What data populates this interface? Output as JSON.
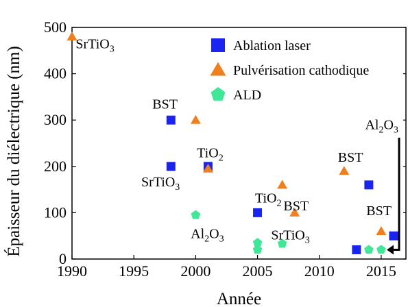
{
  "chart_data": {
    "type": "scatter",
    "title": "",
    "xlabel": "Année",
    "ylabel": "Épaisseur du diélectrique (nm)",
    "xlim": [
      1990,
      2017
    ],
    "ylim": [
      0,
      500
    ],
    "xticks": [
      1990,
      1995,
      2000,
      2005,
      2010,
      2015
    ],
    "yticks": [
      0,
      100,
      200,
      300,
      400,
      500
    ],
    "legend_position": "top-center",
    "grid": false,
    "series": [
      {
        "name": "Ablation laser",
        "marker": "square",
        "color": "#1a24f0",
        "points": [
          [
            1998,
            300
          ],
          [
            1998,
            200
          ],
          [
            2001,
            200
          ],
          [
            2005,
            100
          ],
          [
            2013,
            20
          ],
          [
            2014,
            160
          ],
          [
            2016,
            50
          ]
        ]
      },
      {
        "name": "Pulvérisation cathodique",
        "marker": "triangle",
        "color": "#f0801e",
        "points": [
          [
            1990,
            480
          ],
          [
            2000,
            300
          ],
          [
            2001,
            195
          ],
          [
            2007,
            160
          ],
          [
            2008,
            100
          ],
          [
            2012,
            190
          ],
          [
            2015,
            60
          ]
        ]
      },
      {
        "name": "ALD",
        "marker": "pentagon",
        "color": "#3ee896",
        "points": [
          [
            2000,
            95
          ],
          [
            2005,
            35
          ],
          [
            2005,
            20
          ],
          [
            2007,
            33
          ],
          [
            2014,
            20
          ],
          [
            2015,
            20
          ]
        ]
      }
    ],
    "annotations": [
      {
        "main": "SrTiO",
        "sub": "3",
        "x": 1990.3,
        "y": 455
      },
      {
        "main": "BST",
        "sub": "",
        "x": 1996.5,
        "y": 325
      },
      {
        "main": "SrTiO",
        "sub": "3",
        "x": 1995.6,
        "y": 157
      },
      {
        "main": "TiO",
        "sub": "2",
        "x": 2000.1,
        "y": 220
      },
      {
        "main": "Al",
        "sub": "2",
        "main2": "O",
        "sub2": "3",
        "x": 1999.6,
        "y": 45
      },
      {
        "main": "TiO",
        "sub": "2",
        "x": 2004.8,
        "y": 122
      },
      {
        "main": "BST",
        "sub": "",
        "x": 2007.1,
        "y": 105
      },
      {
        "main": "SrTiO",
        "sub": "3",
        "x": 2006.1,
        "y": 42
      },
      {
        "main": "BST",
        "sub": "",
        "x": 2011.5,
        "y": 210
      },
      {
        "main": "BST",
        "sub": "",
        "x": 2013.8,
        "y": 95
      },
      {
        "main": "Al",
        "sub": "2",
        "main2": "O",
        "sub2": "3",
        "x": 2013.7,
        "y": 280
      }
    ]
  }
}
